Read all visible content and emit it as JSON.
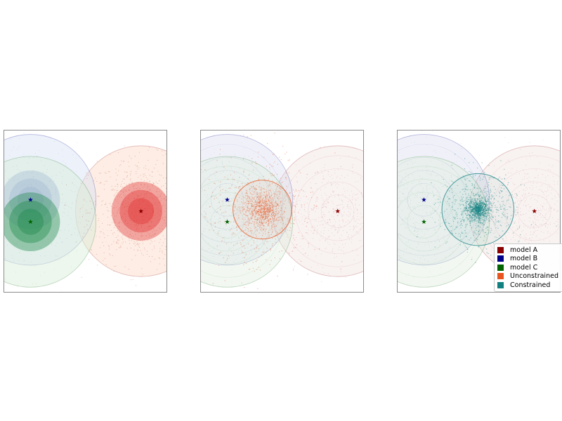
{
  "chart_data": [
    {
      "type": "scatter",
      "panel": "models",
      "xlim": [
        0,
        10
      ],
      "ylim": [
        0,
        10
      ],
      "grid": false,
      "centers": [
        {
          "model": "model A",
          "x": 8.4,
          "y": 5.0
        },
        {
          "model": "model B",
          "x": 1.65,
          "y": 5.7
        },
        {
          "model": "model C",
          "x": 1.65,
          "y": 4.35
        }
      ],
      "outer_radius": {
        "model A": 4.0,
        "model B": 4.0,
        "model C": 4.0
      },
      "inner_rings": {
        "model A": [
          1.8,
          1.3,
          0.8
        ],
        "model B": [
          1.8,
          1.3,
          0.8
        ],
        "model C": [
          1.8,
          1.3,
          0.8
        ]
      }
    },
    {
      "type": "scatter",
      "panel": "unconstrained",
      "xlim": [
        0,
        10
      ],
      "ylim": [
        0,
        10
      ],
      "grid": false,
      "centers": [
        {
          "model": "model A",
          "x": 8.4,
          "y": 5.0
        },
        {
          "model": "model B",
          "x": 1.65,
          "y": 5.7
        },
        {
          "model": "model C",
          "x": 1.65,
          "y": 4.35
        }
      ],
      "posterior": {
        "name": "Unconstrained",
        "x": 3.8,
        "y": 5.1,
        "radius": 1.8
      }
    },
    {
      "type": "scatter",
      "panel": "constrained",
      "xlim": [
        0,
        10
      ],
      "ylim": [
        0,
        10
      ],
      "grid": false,
      "centers": [
        {
          "model": "model A",
          "x": 8.4,
          "y": 5.0
        },
        {
          "model": "model B",
          "x": 1.65,
          "y": 5.7
        },
        {
          "model": "model C",
          "x": 1.65,
          "y": 4.35
        }
      ],
      "posterior": {
        "name": "Constrained",
        "x": 4.95,
        "y": 5.1,
        "radius": 2.2
      }
    }
  ],
  "legend": {
    "placement": "lower-right",
    "items": [
      {
        "label": "model A",
        "color": "#8b0000"
      },
      {
        "label": "model B",
        "color": "#00008b"
      },
      {
        "label": "model C",
        "color": "#006400"
      },
      {
        "label": "Unconstrained",
        "color": "#e8541f"
      },
      {
        "label": "Constrained",
        "color": "#108080"
      }
    ]
  },
  "colors": {
    "model_A": "#8b0000",
    "model_A_fill": "#e03030",
    "model_A_soft": "#fbd7c4",
    "model_B": "#00008b",
    "model_B_fill": "#9fb4d0",
    "model_B_soft": "#d5dff5",
    "model_C": "#006400",
    "model_C_fill": "#1f8a4a",
    "model_C_soft": "#d8eed8",
    "unconstrained": "#e8541f",
    "constrained": "#108080"
  }
}
